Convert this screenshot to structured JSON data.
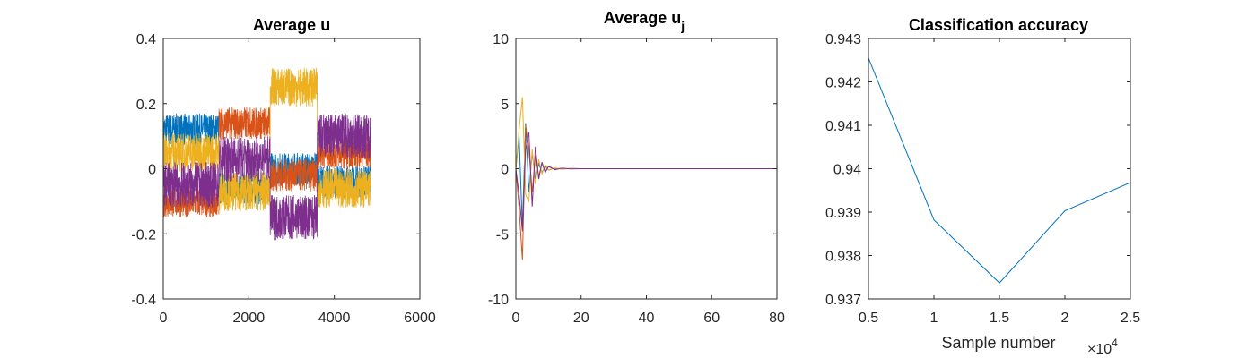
{
  "chart_data": [
    {
      "type": "line",
      "title": "Average u",
      "xlim": [
        0,
        6000
      ],
      "ylim": [
        -0.4,
        0.4
      ],
      "xticks": [
        "0",
        "2000",
        "4000",
        "6000"
      ],
      "yticks": [
        "-0.4",
        "-0.2",
        "0",
        "0.2",
        "0.4"
      ],
      "x_extent": [
        0,
        4850
      ],
      "segment_breaks": [
        0,
        1300,
        2500,
        3600,
        4850
      ],
      "series": [
        {
          "color": "#0072BD",
          "segment_means": [
            0.12,
            -0.06,
            0.0,
            -0.04
          ],
          "noise_amplitude": 0.05
        },
        {
          "color": "#D95319",
          "segment_means": [
            -0.1,
            0.14,
            -0.02,
            0.05
          ],
          "noise_amplitude": 0.05
        },
        {
          "color": "#EDB120",
          "segment_means": [
            0.05,
            -0.07,
            0.25,
            -0.06
          ],
          "noise_amplitude": 0.06
        },
        {
          "color": "#7E2F8E",
          "segment_means": [
            -0.05,
            0.03,
            -0.15,
            0.1
          ],
          "noise_amplitude": 0.07
        }
      ],
      "grid": false
    },
    {
      "type": "line",
      "title": "Average u",
      "title_subscript": "j",
      "xlim": [
        0,
        80
      ],
      "ylim": [
        -10,
        10
      ],
      "xticks": [
        "0",
        "20",
        "40",
        "60",
        "80"
      ],
      "yticks": [
        "-10",
        "-5",
        "0",
        "5",
        "10"
      ],
      "series": [
        {
          "color": "#0072BD",
          "x": [
            0,
            1,
            2,
            3,
            4,
            5,
            6,
            7,
            8,
            9,
            10,
            12,
            14,
            17,
            20,
            25,
            30,
            40,
            60,
            80
          ],
          "y": [
            0,
            2.5,
            -4.5,
            3.5,
            -1.8,
            1.2,
            -0.8,
            0.4,
            -0.3,
            0.2,
            -0.1,
            0.05,
            -0.03,
            0.02,
            0,
            0,
            0,
            0,
            0,
            0
          ]
        },
        {
          "color": "#D95319",
          "x": [
            0,
            1,
            2,
            3,
            4,
            5,
            6,
            7,
            8,
            9,
            10,
            12,
            14,
            17,
            20,
            25,
            30,
            40,
            60,
            80
          ],
          "y": [
            0,
            -3.0,
            -7.0,
            3.3,
            1.5,
            -1.8,
            1.0,
            -0.6,
            0.4,
            -0.2,
            0.15,
            -0.05,
            0.03,
            0,
            0,
            0,
            0,
            0,
            0,
            0
          ]
        },
        {
          "color": "#EDB120",
          "x": [
            0,
            1,
            2,
            3,
            4,
            5,
            6,
            7,
            8,
            9,
            10,
            12,
            14,
            17,
            20,
            25,
            30,
            40,
            60,
            80
          ],
          "y": [
            0,
            3.0,
            5.5,
            -2.0,
            -2.5,
            1.5,
            -1.2,
            0.7,
            -0.4,
            0.3,
            -0.1,
            0.06,
            -0.02,
            0.01,
            0,
            0,
            0,
            0,
            0,
            0
          ]
        },
        {
          "color": "#7E2F8E",
          "x": [
            0,
            1,
            2,
            3,
            4,
            5,
            6,
            7,
            8,
            9,
            10,
            12,
            14,
            17,
            20,
            25,
            30,
            40,
            60,
            80
          ],
          "y": [
            0,
            -2.0,
            -4.8,
            1.5,
            2.8,
            -2.9,
            1.7,
            -0.8,
            0.5,
            -0.3,
            0.2,
            -0.08,
            0.04,
            -0.02,
            0,
            0,
            0,
            0,
            0,
            0
          ]
        }
      ],
      "grid": false
    },
    {
      "type": "line",
      "title": "Classification accuracy",
      "xlabel": "Sample number",
      "x_exponent_label": "×10",
      "x_exponent_power": "4",
      "xlim": [
        0.5,
        2.5
      ],
      "ylim": [
        0.937,
        0.943
      ],
      "xticks": [
        "0.5",
        "1",
        "1.5",
        "2",
        "2.5"
      ],
      "yticks": [
        "0.937",
        "0.938",
        "0.939",
        "0.94",
        "0.941",
        "0.942",
        "0.943"
      ],
      "series": [
        {
          "color": "#0072BD",
          "x": [
            0.5,
            1.0,
            1.5,
            2.0,
            2.5
          ],
          "y": [
            0.94255,
            0.93882,
            0.93737,
            0.93903,
            0.93968
          ]
        }
      ],
      "grid": false
    }
  ]
}
